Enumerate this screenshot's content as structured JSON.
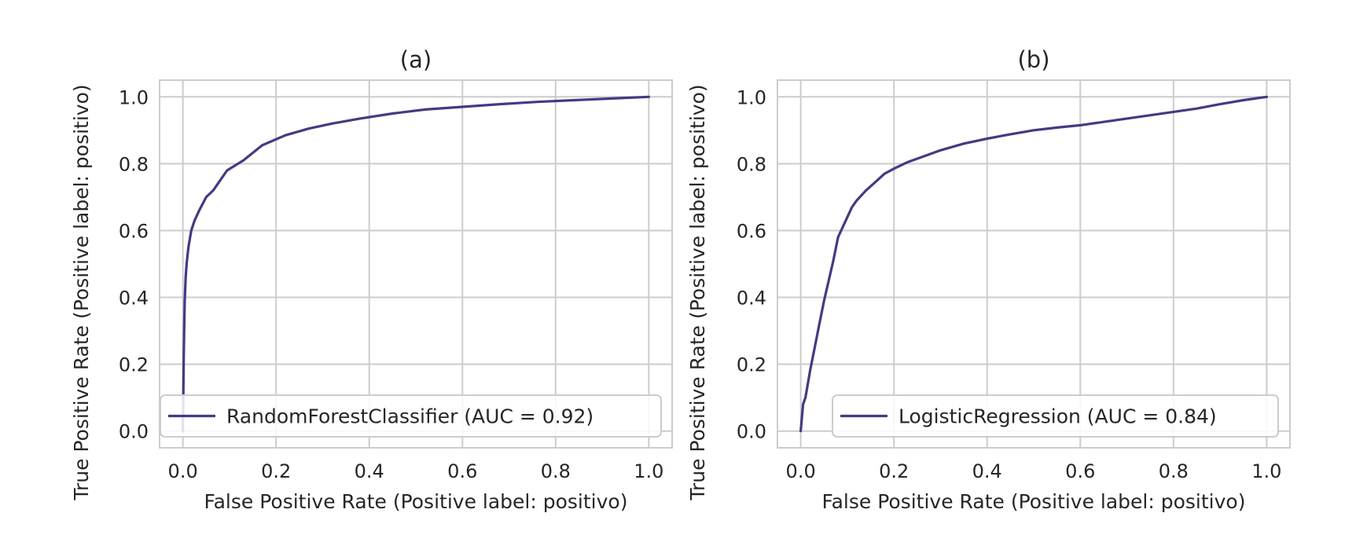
{
  "colors": {
    "curve": "#4a3783",
    "grid": "#cccccc",
    "frame": "#cccccc",
    "legend_border": "#cccccc",
    "text": "#262626",
    "background": "#ffffff"
  },
  "chart_data": [
    {
      "type": "line",
      "title": "(a)",
      "xlabel": "False Positive Rate (Positive label: positivo)",
      "ylabel": "True Positive Rate (Positive label: positivo)",
      "xlim": [
        -0.05,
        1.05
      ],
      "ylim": [
        -0.05,
        1.05
      ],
      "xticks": [
        "0.0",
        "0.2",
        "0.4",
        "0.6",
        "0.8",
        "1.0"
      ],
      "yticks": [
        "0.0",
        "0.2",
        "0.4",
        "0.6",
        "0.8",
        "1.0"
      ],
      "grid": true,
      "legend_position": "lower-right",
      "series": [
        {
          "name": "RandomForestClassifier (AUC = 0.92)",
          "x": [
            0.0,
            0.001,
            0.002,
            0.003,
            0.004,
            0.006,
            0.008,
            0.012,
            0.018,
            0.025,
            0.035,
            0.05,
            0.065,
            0.08,
            0.095,
            0.13,
            0.17,
            0.22,
            0.27,
            0.32,
            0.38,
            0.45,
            0.52,
            0.6,
            0.68,
            0.76,
            0.84,
            0.92,
            1.0
          ],
          "y": [
            0.0,
            0.11,
            0.23,
            0.32,
            0.39,
            0.46,
            0.5,
            0.55,
            0.6,
            0.63,
            0.66,
            0.7,
            0.72,
            0.75,
            0.78,
            0.81,
            0.855,
            0.885,
            0.905,
            0.92,
            0.935,
            0.95,
            0.962,
            0.97,
            0.978,
            0.985,
            0.99,
            0.995,
            1.0
          ]
        }
      ]
    },
    {
      "type": "line",
      "title": "(b)",
      "xlabel": "False Positive Rate (Positive label: positivo)",
      "ylabel": "True Positive Rate (Positive label: positivo)",
      "xlim": [
        -0.05,
        1.05
      ],
      "ylim": [
        -0.05,
        1.05
      ],
      "xticks": [
        "0.0",
        "0.2",
        "0.4",
        "0.6",
        "0.8",
        "1.0"
      ],
      "yticks": [
        "0.0",
        "0.2",
        "0.4",
        "0.6",
        "0.8",
        "1.0"
      ],
      "grid": true,
      "legend_position": "lower-right",
      "series": [
        {
          "name": "LogisticRegression (AUC = 0.84)",
          "x": [
            0.0,
            0.005,
            0.01,
            0.02,
            0.03,
            0.04,
            0.05,
            0.06,
            0.07,
            0.08,
            0.09,
            0.1,
            0.11,
            0.12,
            0.14,
            0.16,
            0.18,
            0.2,
            0.23,
            0.26,
            0.3,
            0.35,
            0.4,
            0.45,
            0.5,
            0.55,
            0.6,
            0.65,
            0.7,
            0.75,
            0.8,
            0.85,
            0.9,
            0.95,
            1.0
          ],
          "y": [
            0.0,
            0.08,
            0.1,
            0.18,
            0.25,
            0.32,
            0.39,
            0.45,
            0.51,
            0.58,
            0.61,
            0.64,
            0.67,
            0.69,
            0.72,
            0.745,
            0.77,
            0.785,
            0.805,
            0.82,
            0.84,
            0.86,
            0.875,
            0.888,
            0.9,
            0.908,
            0.915,
            0.925,
            0.935,
            0.945,
            0.955,
            0.965,
            0.978,
            0.99,
            1.0
          ]
        }
      ]
    }
  ]
}
